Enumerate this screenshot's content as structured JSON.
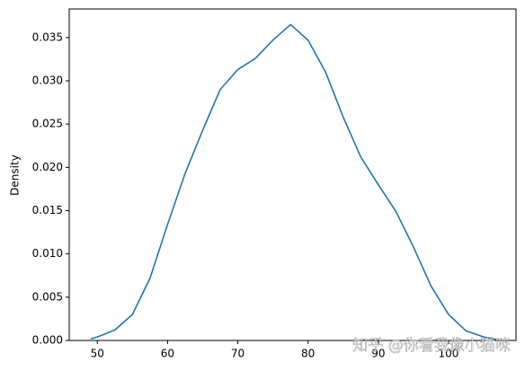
{
  "chart_data": {
    "type": "line",
    "y_label": "Density",
    "watermark": "知乎 @你看我像小猫咪",
    "x": [
      49.1,
      50,
      52.5,
      55,
      57.5,
      60,
      62.5,
      65,
      67.5,
      70,
      72.5,
      75,
      77.5,
      80,
      82.5,
      85,
      87.5,
      90,
      92.5,
      95,
      97.5,
      100,
      102.5,
      105,
      106.9
    ],
    "series": [
      {
        "color": "#1f77b4",
        "values": [
          0.0002,
          0.0004,
          0.0012,
          0.003,
          0.0072,
          0.0134,
          0.0193,
          0.0243,
          0.029,
          0.0313,
          0.0326,
          0.0347,
          0.0365,
          0.0347,
          0.031,
          0.0258,
          0.0212,
          0.018,
          0.0149,
          0.0108,
          0.0063,
          0.003,
          0.0011,
          0.0004,
          0.0001
        ]
      }
    ],
    "xlim": [
      46.0,
      109.6
    ],
    "ylim": [
      0,
      0.0383
    ],
    "xticks": [
      50,
      60,
      70,
      80,
      90,
      100
    ],
    "yticks": [
      {
        "value": 0,
        "label": "0.000"
      },
      {
        "value": 0.005,
        "label": "0.005"
      },
      {
        "value": 0.01,
        "label": "0.010"
      },
      {
        "value": 0.015,
        "label": "0.015"
      },
      {
        "value": 0.02,
        "label": "0.020"
      },
      {
        "value": 0.025,
        "label": "0.025"
      },
      {
        "value": 0.03,
        "label": "0.030"
      },
      {
        "value": 0.035,
        "label": "0.035"
      }
    ],
    "grid": false
  }
}
